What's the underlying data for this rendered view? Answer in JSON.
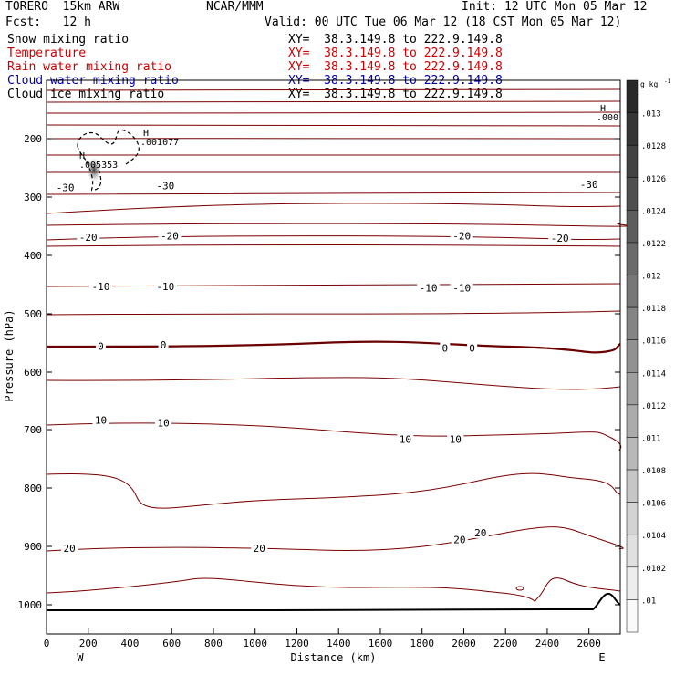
{
  "header": {
    "model": "TORERO  15km ARW",
    "org": "NCAR/MMM",
    "init": "Init: 12 UTC Mon 05 Mar 12",
    "fcst": "Fcst:   12 h",
    "valid": "Valid: 00 UTC Tue 06 Mar 12 (18 CST Mon 05 Mar 12)"
  },
  "fields": [
    {
      "name": "Snow mixing ratio",
      "color": "#000000",
      "xy": ""
    },
    {
      "name": "Temperature",
      "color": "#cc0000",
      "xy": "XY=  38.3.149.8 to 222.9.149.8"
    },
    {
      "name": "Rain water mixing ratio",
      "color": "#cc0000",
      "xy": "XY=  38.3.149.8 to 222.9.149.8"
    },
    {
      "name": "Cloud water mixing ratio",
      "color": "#0000aa",
      "xy": "XY=  38.3.149.8 to 222.9.149.8"
    },
    {
      "name": "Cloud ice mixing ratio",
      "color": "#000000",
      "xy": "XY=  38.3.149.8 to 222.9.149.8"
    }
  ],
  "first_xy": "XY=  38.3.149.8 to 222.9.149.8",
  "colors": {
    "isotherm": "#7a0000",
    "zero_isotherm": "#6b0000",
    "terrain": "#000000"
  },
  "chart_data": {
    "type": "cross-section",
    "xlabel": "Distance (km)",
    "ylabel": "Pressure (hPa)",
    "x_ticks": [
      0,
      200,
      400,
      600,
      800,
      1000,
      1200,
      1400,
      1600,
      1800,
      2000,
      2200,
      2400,
      2600
    ],
    "y_ticks": [
      200,
      300,
      400,
      500,
      600,
      700,
      800,
      900,
      1000
    ],
    "xlim": [
      0,
      2750
    ],
    "ylim_hPa": [
      1050,
      100
    ],
    "y_scale": "log",
    "x_end_labels": {
      "left": "W",
      "right": "E"
    },
    "colorbar": {
      "unit": "g kg",
      "unit_exp": "-1",
      "labels": [
        ".013",
        ".0128",
        ".0126",
        ".0124",
        ".0122",
        ".012",
        ".0118",
        ".0116",
        ".0114",
        ".0112",
        ".011",
        ".0108",
        ".0106",
        ".0104",
        ".0102",
        ".01"
      ]
    },
    "isotherm_labels": [
      {
        "text": "-30",
        "x": 90,
        "p": 285
      },
      {
        "text": "-30",
        "x": 570,
        "p": 282
      },
      {
        "text": "-30",
        "x": 2600,
        "p": 280
      },
      {
        "text": "-20",
        "x": 200,
        "p": 370
      },
      {
        "text": "-20",
        "x": 590,
        "p": 368
      },
      {
        "text": "-20",
        "x": 1990,
        "p": 368
      },
      {
        "text": "-20",
        "x": 2460,
        "p": 372
      },
      {
        "text": "-10",
        "x": 260,
        "p": 455
      },
      {
        "text": "-10",
        "x": 570,
        "p": 455
      },
      {
        "text": "-10",
        "x": 1830,
        "p": 457
      },
      {
        "text": "-10",
        "x": 1990,
        "p": 457
      },
      {
        "text": "0",
        "x": 260,
        "p": 557
      },
      {
        "text": "0",
        "x": 560,
        "p": 555
      },
      {
        "text": "0",
        "x": 1910,
        "p": 560
      },
      {
        "text": "0",
        "x": 2040,
        "p": 560
      },
      {
        "text": "10",
        "x": 260,
        "p": 685
      },
      {
        "text": "10",
        "x": 560,
        "p": 690
      },
      {
        "text": "10",
        "x": 1720,
        "p": 718
      },
      {
        "text": "10",
        "x": 1960,
        "p": 718
      },
      {
        "text": "20",
        "x": 110,
        "p": 905
      },
      {
        "text": "20",
        "x": 1020,
        "p": 905
      },
      {
        "text": "20",
        "x": 1980,
        "p": 890
      },
      {
        "text": "20",
        "x": 2080,
        "p": 878
      }
    ],
    "snow_maxima": [
      {
        "label": "H",
        "value": ".001077",
        "x": 460,
        "p": 190
      },
      {
        "label": "H",
        "value": ".005353",
        "x": 220,
        "p": 254
      },
      {
        "label": "H",
        "value": ".000",
        "x": 2660,
        "p": 175
      }
    ]
  }
}
